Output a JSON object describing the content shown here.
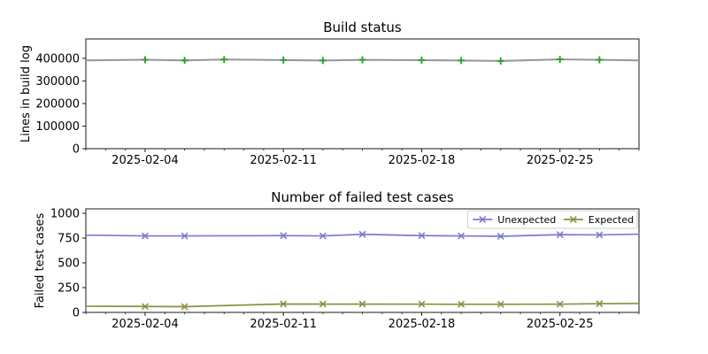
{
  "figure": {
    "background": "#ffffff",
    "description": "Two stacked line charts: build log size and failed test case counts over February 2025"
  },
  "chart_data": [
    {
      "type": "line",
      "title": "Build status",
      "xlabel": "",
      "ylabel": "Lines in build log",
      "x_start_date": "2025-02-01",
      "xlim": [
        0,
        28
      ],
      "ylim": [
        0,
        486000
      ],
      "grid": false,
      "yticks": [
        0,
        100000,
        200000,
        300000,
        400000
      ],
      "ytick_labels": [
        "0",
        "100000",
        "200000",
        "300000",
        "400000"
      ],
      "xticks": [
        3,
        10,
        17,
        24
      ],
      "xtick_labels": [
        "2025-02-04",
        "2025-02-11",
        "2025-02-18",
        "2025-02-25"
      ],
      "minor_xtick_step": 1,
      "legend": null,
      "series": [
        {
          "name": "Lines in build log",
          "color": "#969696",
          "line_width": 2,
          "marker": "plus",
          "marker_color": "#2ca02c",
          "x": [
            0,
            3,
            5,
            7,
            10,
            12,
            14,
            17,
            19,
            21,
            24,
            26,
            28
          ],
          "y": [
            391000,
            394000,
            391000,
            395000,
            392500,
            390500,
            393500,
            392000,
            390500,
            388500,
            395500,
            393500,
            391000
          ],
          "marker_x": [
            3,
            5,
            7,
            10,
            12,
            14,
            17,
            19,
            21,
            24,
            26
          ],
          "marker_y": [
            394000,
            391000,
            395000,
            392500,
            390500,
            393500,
            392000,
            390500,
            388500,
            395500,
            393500
          ],
          "marker_dates": [
            "2025-02-04",
            "2025-02-06",
            "2025-02-08",
            "2025-02-11",
            "2025-02-13",
            "2025-02-15",
            "2025-02-18",
            "2025-02-20",
            "2025-02-22",
            "2025-02-25",
            "2025-02-27"
          ]
        }
      ]
    },
    {
      "type": "line",
      "title": "Number of failed test cases",
      "xlabel": "",
      "ylabel": "Failed test cases",
      "x_start_date": "2025-02-01",
      "xlim": [
        0,
        28
      ],
      "ylim": [
        0,
        1045
      ],
      "grid": false,
      "yticks": [
        0,
        250,
        500,
        750,
        1000
      ],
      "ytick_labels": [
        "0",
        "250",
        "500",
        "750",
        "1000"
      ],
      "xticks": [
        3,
        10,
        17,
        24
      ],
      "xtick_labels": [
        "2025-02-04",
        "2025-02-11",
        "2025-02-18",
        "2025-02-25"
      ],
      "minor_xtick_step": 1,
      "legend": {
        "position": "upper-right",
        "entries": [
          "Unexpected",
          "Expected"
        ]
      },
      "series": [
        {
          "name": "Unexpected",
          "color": "#7b7bce",
          "line_width": 1.7,
          "marker": "x",
          "marker_color": "#7b7bce",
          "x": [
            0,
            3,
            5,
            10,
            12,
            14,
            17,
            19,
            21,
            24,
            26,
            28
          ],
          "y": [
            780,
            772,
            772,
            775,
            772,
            788,
            775,
            772,
            768,
            785,
            782,
            790
          ],
          "marker_x": [
            3,
            5,
            10,
            12,
            14,
            17,
            19,
            21,
            24,
            26
          ],
          "marker_y": [
            772,
            772,
            775,
            772,
            788,
            775,
            772,
            768,
            785,
            782
          ],
          "marker_dates": [
            "2025-02-04",
            "2025-02-06",
            "2025-02-11",
            "2025-02-13",
            "2025-02-15",
            "2025-02-18",
            "2025-02-20",
            "2025-02-22",
            "2025-02-25",
            "2025-02-27"
          ]
        },
        {
          "name": "Expected",
          "color": "#8f8f42",
          "line_width": 1.7,
          "marker": "x",
          "marker_color": "#8f8f42",
          "x": [
            0,
            3,
            5,
            10,
            12,
            14,
            17,
            19,
            21,
            24,
            26,
            28
          ],
          "y": [
            62,
            60,
            58,
            85,
            84,
            84,
            83,
            82,
            82,
            83,
            88,
            90
          ],
          "marker_x": [
            3,
            5,
            10,
            12,
            14,
            17,
            19,
            21,
            24,
            26
          ],
          "marker_y": [
            60,
            58,
            85,
            84,
            84,
            83,
            82,
            82,
            83,
            88
          ],
          "marker_dates": [
            "2025-02-04",
            "2025-02-06",
            "2025-02-11",
            "2025-02-13",
            "2025-02-15",
            "2025-02-18",
            "2025-02-20",
            "2025-02-22",
            "2025-02-25",
            "2025-02-27"
          ]
        }
      ]
    }
  ],
  "colors": {
    "spine": "#1a1a1a",
    "tick": "#1a1a1a",
    "text": "#000000",
    "legend_border": "#cccccc",
    "legend_bg": "#ffffff",
    "build_line": "#969696",
    "build_marker_green": "#2ca02c",
    "unexpected_blue": "#7b7bce",
    "expected_olive": "#8f8f42"
  }
}
